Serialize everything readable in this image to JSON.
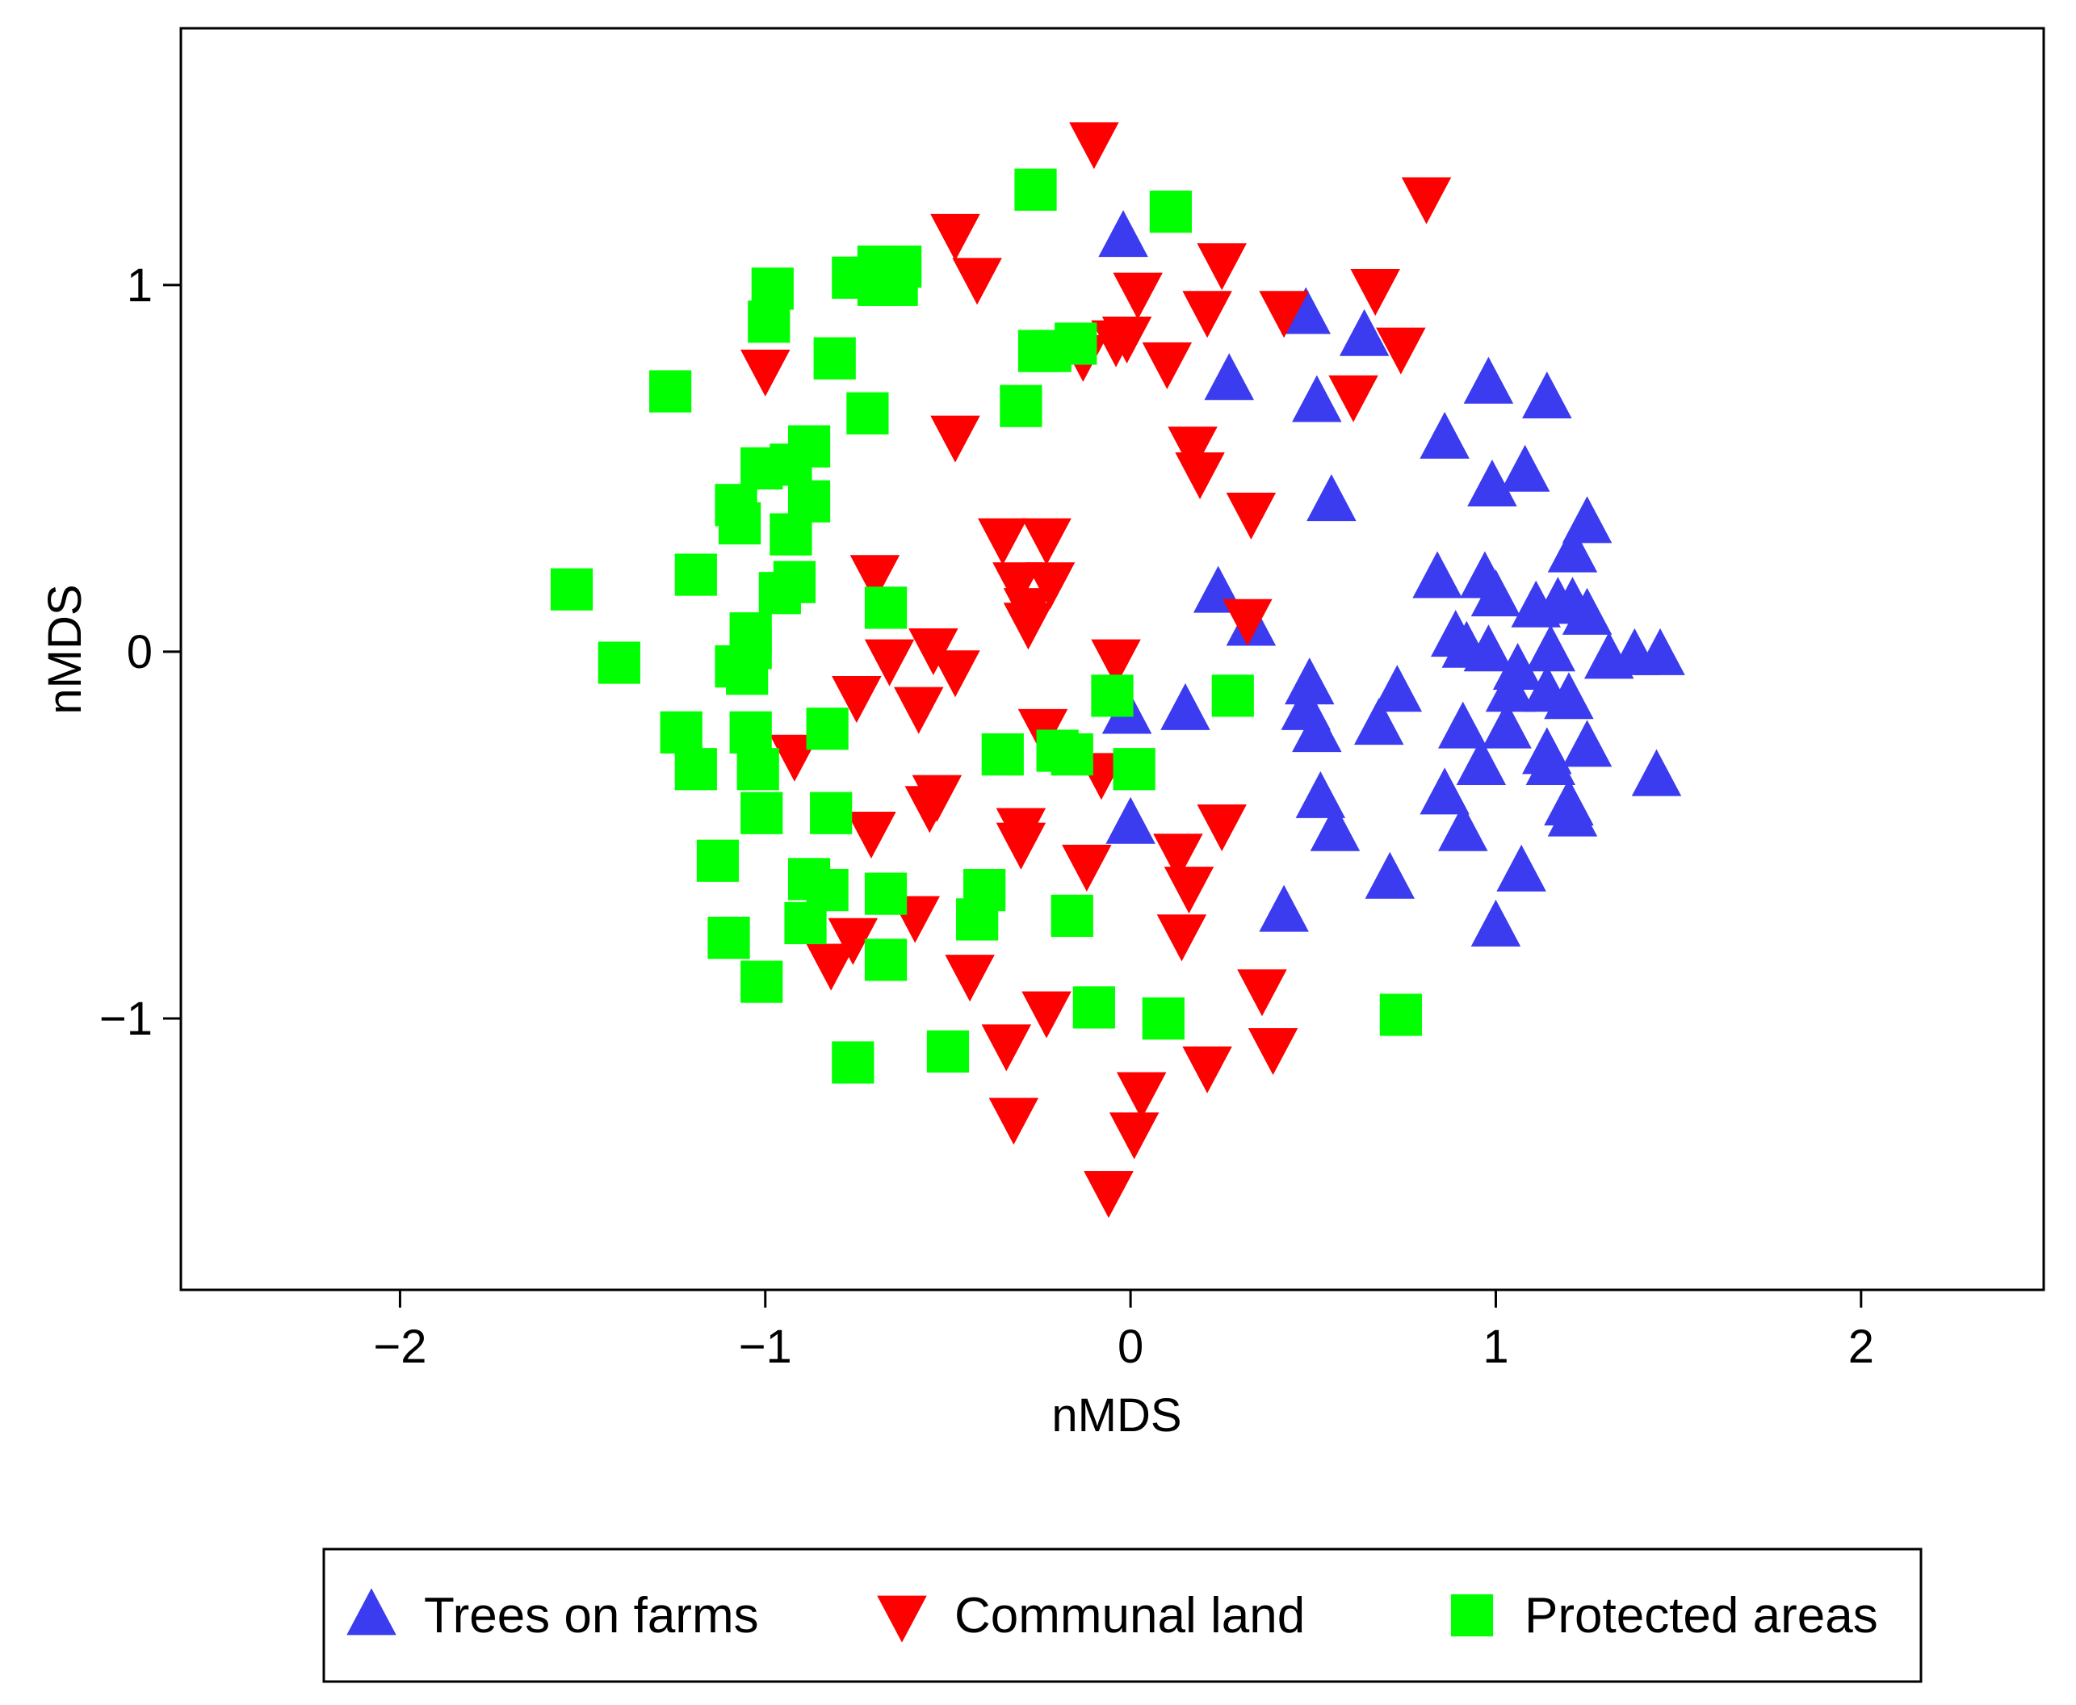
{
  "chart_data": {
    "type": "scatter",
    "title": "",
    "xlabel": "nMDS",
    "ylabel": "nMDS",
    "xlim": [
      -2.6,
      2.5
    ],
    "ylim": [
      -1.74,
      1.7
    ],
    "xticks": [
      -2,
      -1,
      0,
      1,
      2
    ],
    "xtick_labels": [
      "−2",
      "−1",
      "0",
      "1",
      "2"
    ],
    "yticks": [
      -1,
      0,
      1
    ],
    "ytick_labels": [
      "−1",
      "0",
      "1"
    ],
    "grid": false,
    "legend_position": "bottom",
    "series": [
      {
        "name": "Trees on farms",
        "marker": "triangle-up",
        "color": "#3b3bf0",
        "points": [
          [
            -0.02,
            1.13
          ],
          [
            0.48,
            0.92
          ],
          [
            0.64,
            0.86
          ],
          [
            0.27,
            0.74
          ],
          [
            0.51,
            0.68
          ],
          [
            0.98,
            0.73
          ],
          [
            1.14,
            0.69
          ],
          [
            0.86,
            0.58
          ],
          [
            1.08,
            0.49
          ],
          [
            0.55,
            0.41
          ],
          [
            0.99,
            0.45
          ],
          [
            1.25,
            0.35
          ],
          [
            1.21,
            0.27
          ],
          [
            0.84,
            0.2
          ],
          [
            0.97,
            0.2
          ],
          [
            0.24,
            0.16
          ],
          [
            1.0,
            0.15
          ],
          [
            1.11,
            0.12
          ],
          [
            1.17,
            0.13
          ],
          [
            1.21,
            0.13
          ],
          [
            1.25,
            0.1
          ],
          [
            0.33,
            0.07
          ],
          [
            0.89,
            0.04
          ],
          [
            0.92,
            0.01
          ],
          [
            0.98,
            0.0
          ],
          [
            1.15,
            0.0
          ],
          [
            1.31,
            -0.02
          ],
          [
            1.38,
            -0.01
          ],
          [
            1.45,
            -0.01
          ],
          [
            1.06,
            -0.05
          ],
          [
            1.04,
            -0.11
          ],
          [
            1.14,
            -0.11
          ],
          [
            1.2,
            -0.13
          ],
          [
            0.49,
            -0.09
          ],
          [
            0.73,
            -0.11
          ],
          [
            0.48,
            -0.16
          ],
          [
            0.51,
            -0.22
          ],
          [
            0.68,
            -0.2
          ],
          [
            0.91,
            -0.21
          ],
          [
            1.03,
            -0.21
          ],
          [
            1.14,
            -0.28
          ],
          [
            1.25,
            -0.26
          ],
          [
            0.96,
            -0.31
          ],
          [
            1.15,
            -0.31
          ],
          [
            1.44,
            -0.34
          ],
          [
            0.52,
            -0.4
          ],
          [
            0.86,
            -0.39
          ],
          [
            1.2,
            -0.42
          ],
          [
            1.21,
            -0.45
          ],
          [
            0.56,
            -0.49
          ],
          [
            0.91,
            -0.49
          ],
          [
            -0.01,
            -0.17
          ],
          [
            0.15,
            -0.16
          ],
          [
            0.0,
            -0.47
          ],
          [
            0.71,
            -0.62
          ],
          [
            1.07,
            -0.6
          ],
          [
            0.42,
            -0.71
          ],
          [
            1.0,
            -0.75
          ]
        ]
      },
      {
        "name": "Communal land",
        "marker": "triangle-down",
        "color": "#ff0000",
        "points": [
          [
            -0.1,
            1.39
          ],
          [
            0.81,
            1.24
          ],
          [
            -0.48,
            1.14
          ],
          [
            -0.42,
            1.02
          ],
          [
            0.25,
            1.06
          ],
          [
            0.02,
            0.98
          ],
          [
            0.67,
            0.99
          ],
          [
            0.42,
            0.93
          ],
          [
            0.21,
            0.93
          ],
          [
            -0.04,
            0.85
          ],
          [
            -0.01,
            0.86
          ],
          [
            0.74,
            0.83
          ],
          [
            -1.0,
            0.77
          ],
          [
            -0.13,
            0.81
          ],
          [
            0.1,
            0.79
          ],
          [
            0.61,
            0.7
          ],
          [
            -0.48,
            0.59
          ],
          [
            0.17,
            0.56
          ],
          [
            0.19,
            0.49
          ],
          [
            0.33,
            0.38
          ],
          [
            -0.35,
            0.31
          ],
          [
            -0.23,
            0.31
          ],
          [
            -0.31,
            0.19
          ],
          [
            -0.22,
            0.19
          ],
          [
            -0.7,
            0.21
          ],
          [
            -0.28,
            0.12
          ],
          [
            0.32,
            0.09
          ],
          [
            -0.28,
            0.08
          ],
          [
            -0.54,
            0.01
          ],
          [
            -0.66,
            -0.02
          ],
          [
            -0.04,
            -0.02
          ],
          [
            -0.48,
            -0.05
          ],
          [
            -0.75,
            -0.12
          ],
          [
            -0.58,
            -0.15
          ],
          [
            -0.24,
            -0.21
          ],
          [
            -0.92,
            -0.28
          ],
          [
            -0.08,
            -0.33
          ],
          [
            -0.53,
            -0.39
          ],
          [
            -0.55,
            -0.42
          ],
          [
            -0.71,
            -0.49
          ],
          [
            -0.3,
            -0.48
          ],
          [
            0.25,
            -0.47
          ],
          [
            -0.3,
            -0.52
          ],
          [
            -0.12,
            -0.58
          ],
          [
            0.13,
            -0.55
          ],
          [
            0.16,
            -0.64
          ],
          [
            -0.59,
            -0.72
          ],
          [
            -0.76,
            -0.78
          ],
          [
            0.14,
            -0.77
          ],
          [
            -0.82,
            -0.85
          ],
          [
            -0.44,
            -0.88
          ],
          [
            0.36,
            -0.92
          ],
          [
            -0.23,
            -0.98
          ],
          [
            -0.34,
            -1.07
          ],
          [
            0.39,
            -1.08
          ],
          [
            0.21,
            -1.13
          ],
          [
            0.03,
            -1.2
          ],
          [
            0.01,
            -1.31
          ],
          [
            -0.32,
            -1.27
          ],
          [
            -0.06,
            -1.47
          ]
        ]
      },
      {
        "name": "Protected areas",
        "marker": "square",
        "color": "#00ff00",
        "points": [
          [
            -0.26,
            1.26
          ],
          [
            0.11,
            1.2
          ],
          [
            -0.69,
            1.05
          ],
          [
            -0.63,
            1.05
          ],
          [
            -0.66,
            1.03
          ],
          [
            -0.76,
            1.02
          ],
          [
            -0.64,
            1.0
          ],
          [
            -0.69,
            1.0
          ],
          [
            -0.98,
            0.99
          ],
          [
            -0.99,
            0.9
          ],
          [
            -0.81,
            0.8
          ],
          [
            -0.25,
            0.82
          ],
          [
            -0.15,
            0.84
          ],
          [
            -0.22,
            0.82
          ],
          [
            -1.26,
            0.71
          ],
          [
            -0.72,
            0.65
          ],
          [
            -0.3,
            0.67
          ],
          [
            -0.88,
            0.56
          ],
          [
            -0.93,
            0.51
          ],
          [
            -1.01,
            0.5
          ],
          [
            -1.08,
            0.4
          ],
          [
            -0.88,
            0.41
          ],
          [
            -1.07,
            0.35
          ],
          [
            -0.93,
            0.32
          ],
          [
            -1.19,
            0.21
          ],
          [
            -0.92,
            0.19
          ],
          [
            -0.96,
            0.16
          ],
          [
            -1.53,
            0.17
          ],
          [
            -0.67,
            0.12
          ],
          [
            -1.04,
            0.05
          ],
          [
            -1.04,
            0.01
          ],
          [
            -1.08,
            -0.04
          ],
          [
            -1.4,
            -0.03
          ],
          [
            -1.05,
            -0.06
          ],
          [
            0.28,
            -0.12
          ],
          [
            -1.23,
            -0.22
          ],
          [
            -1.04,
            -0.22
          ],
          [
            -0.83,
            -0.21
          ],
          [
            -0.35,
            -0.28
          ],
          [
            -0.2,
            -0.27
          ],
          [
            -0.16,
            -0.28
          ],
          [
            -1.19,
            -0.32
          ],
          [
            -1.02,
            -0.32
          ],
          [
            0.01,
            -0.32
          ],
          [
            -1.01,
            -0.44
          ],
          [
            -0.82,
            -0.44
          ],
          [
            -1.13,
            -0.57
          ],
          [
            -0.88,
            -0.62
          ],
          [
            -0.83,
            -0.65
          ],
          [
            -0.4,
            -0.65
          ],
          [
            -0.67,
            -0.66
          ],
          [
            -0.42,
            -0.73
          ],
          [
            -0.16,
            -0.72
          ],
          [
            -0.89,
            -0.74
          ],
          [
            -1.1,
            -0.78
          ],
          [
            -0.67,
            -0.84
          ],
          [
            -1.01,
            -0.9
          ],
          [
            -0.1,
            -0.97
          ],
          [
            0.09,
            -1.0
          ],
          [
            0.74,
            -0.99
          ],
          [
            -0.5,
            -1.09
          ],
          [
            -0.76,
            -1.12
          ],
          [
            -0.05,
            -0.12
          ]
        ]
      }
    ]
  }
}
